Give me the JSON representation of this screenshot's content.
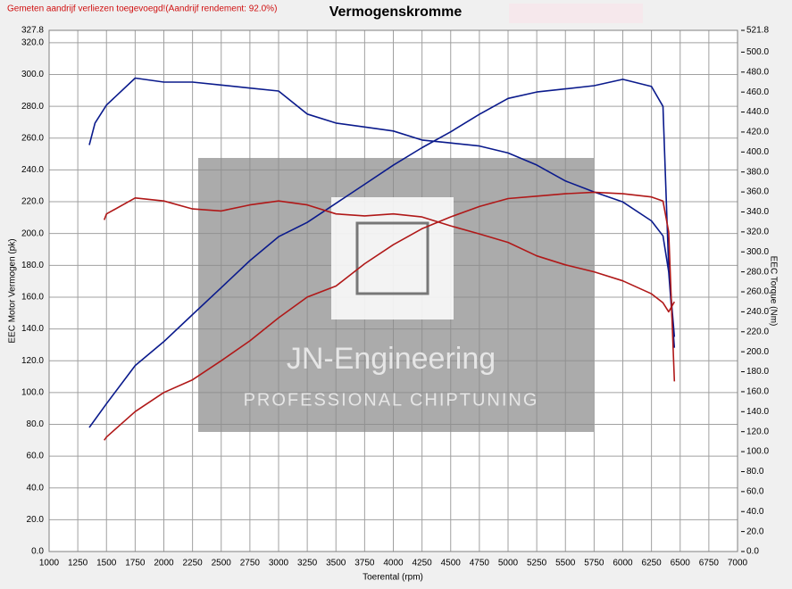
{
  "chart_data": {
    "type": "line",
    "title": "Vermogenskromme",
    "note": "Gemeten aandrijf verliezen toegevoegd!(Aandrijf rendement: 92.0%)",
    "watermark_text": [
      "JN-Engineering",
      "PROFESSIONAL CHIPTUNING"
    ],
    "xlabel": "Toerental (rpm)",
    "ylabel": "EEC Motor Vermogen (pk)",
    "y2label": "EEC Torque (Nm)",
    "xlim": [
      1000,
      7000
    ],
    "xticks": [
      1000,
      1250,
      1500,
      1750,
      2000,
      2250,
      2500,
      2750,
      3000,
      3250,
      3500,
      3750,
      4000,
      4250,
      4500,
      4750,
      5000,
      5250,
      5500,
      5750,
      6000,
      6250,
      6500,
      6750,
      7000
    ],
    "ylim": [
      0,
      327.8
    ],
    "yticks": [
      {
        "value": 0,
        "label": "0.0"
      },
      {
        "value": 20,
        "label": "20.0"
      },
      {
        "value": 40,
        "label": "40.0"
      },
      {
        "value": 60,
        "label": "60.0"
      },
      {
        "value": 80,
        "label": "80.0"
      },
      {
        "value": 100,
        "label": "100.0"
      },
      {
        "value": 120,
        "label": "120.0"
      },
      {
        "value": 140,
        "label": "140.0"
      },
      {
        "value": 160,
        "label": "160.0"
      },
      {
        "value": 180,
        "label": "180.0"
      },
      {
        "value": 200,
        "label": "200.0"
      },
      {
        "value": 220,
        "label": "220.0"
      },
      {
        "value": 240,
        "label": "240.0"
      },
      {
        "value": 260,
        "label": "260.0"
      },
      {
        "value": 280,
        "label": "280.0"
      },
      {
        "value": 300,
        "label": "300.0"
      },
      {
        "value": 320,
        "label": "320.0"
      },
      327.8
    ],
    "y2lim": [
      0,
      521.8
    ],
    "y2ticks": [
      {
        "value": 0,
        "label": "0.0"
      },
      {
        "value": 20,
        "label": "20.0"
      },
      {
        "value": 40,
        "label": "40.0"
      },
      {
        "value": 60,
        "label": "60.0"
      },
      {
        "value": 80,
        "label": "80.0"
      },
      {
        "value": 100,
        "label": "100.0"
      },
      {
        "value": 120,
        "label": "120.0"
      },
      {
        "value": 140,
        "label": "140.0"
      },
      {
        "value": 160,
        "label": "160.0"
      },
      {
        "value": 180,
        "label": "180.0"
      },
      {
        "value": 200,
        "label": "200.0"
      },
      {
        "value": 220,
        "label": "220.0"
      },
      {
        "value": 240,
        "label": "240.0"
      },
      {
        "value": 260,
        "label": "260.0"
      },
      {
        "value": 280,
        "label": "280.0"
      },
      {
        "value": 300,
        "label": "300.0"
      },
      {
        "value": 320,
        "label": "320.0"
      },
      {
        "value": 340,
        "label": "340.0"
      },
      {
        "value": 360,
        "label": "360.0"
      },
      {
        "value": 380,
        "label": "380.0"
      },
      {
        "value": 400,
        "label": "400.0"
      },
      {
        "value": 420,
        "label": "420.0"
      },
      {
        "value": 440,
        "label": "440.0"
      },
      {
        "value": 460,
        "label": "460.0"
      },
      {
        "value": 480,
        "label": "480.0"
      },
      {
        "value": 500,
        "label": "500.0"
      },
      521.8
    ],
    "grid": true,
    "series": [
      {
        "color": "#0a1a8c",
        "axis": "y",
        "x": [
          1350,
          1500,
          1750,
          2000,
          2250,
          2500,
          2750,
          3000,
          3250,
          3500,
          3750,
          4000,
          4250,
          4500,
          4750,
          5000,
          5250,
          5500,
          5750,
          6000,
          6250,
          6350,
          6400,
          6450
        ],
        "values": [
          78,
          93,
          117,
          132,
          149,
          166,
          183,
          198,
          207,
          219,
          231,
          243,
          254,
          264,
          275,
          285,
          289,
          291,
          293,
          297,
          292.5,
          280,
          178,
          135
        ]
      },
      {
        "color": "#0a1a8c",
        "axis": "y2",
        "x": [
          1350,
          1400,
          1500,
          1750,
          2000,
          2250,
          2500,
          2750,
          3000,
          3250,
          3500,
          3750,
          4000,
          4250,
          4500,
          4750,
          5000,
          5250,
          5500,
          5750,
          6000,
          6250,
          6350,
          6400,
          6450
        ],
        "values": [
          407,
          429,
          447,
          474,
          470,
          470,
          467,
          464,
          461,
          438,
          429,
          425,
          421,
          412,
          409,
          406,
          399,
          387,
          371,
          360,
          350,
          331,
          316,
          280,
          204
        ]
      },
      {
        "color": "#b01818",
        "axis": "y",
        "x": [
          1480,
          1500,
          1750,
          2000,
          2250,
          2500,
          2750,
          3000,
          3250,
          3500,
          3750,
          4000,
          4250,
          4500,
          4750,
          5000,
          5250,
          5500,
          5750,
          6000,
          6250,
          6350,
          6400,
          6450
        ],
        "values": [
          70,
          72,
          88,
          100,
          108,
          120,
          132.5,
          147,
          160,
          167,
          181,
          193,
          203,
          210.5,
          217,
          222,
          223.5,
          225,
          226,
          225,
          223,
          220.5,
          201,
          107
        ]
      },
      {
        "color": "#b01818",
        "axis": "y2",
        "x": [
          1480,
          1500,
          1750,
          2000,
          2250,
          2500,
          2750,
          3000,
          3250,
          3500,
          3750,
          4000,
          4250,
          4500,
          4750,
          5000,
          5250,
          5500,
          5750,
          6000,
          6250,
          6350,
          6400,
          6450
        ],
        "values": [
          332,
          338,
          354,
          351,
          343,
          341,
          347,
          351,
          347,
          338,
          336,
          338,
          335,
          326,
          318,
          309.5,
          296,
          287,
          280,
          271,
          258,
          249,
          240,
          250
        ]
      }
    ]
  }
}
